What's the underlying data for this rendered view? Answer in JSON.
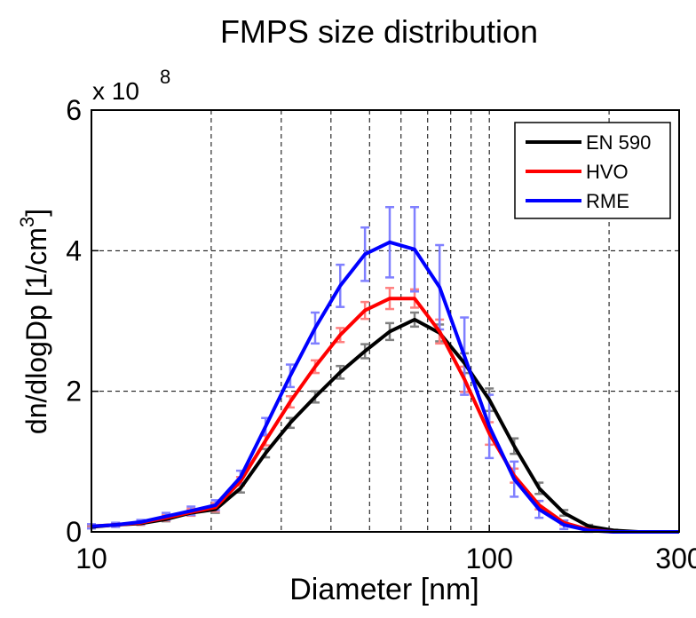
{
  "chart_data": {
    "type": "line",
    "title": "FMPS size distribution",
    "xlabel": "Diameter [nm]",
    "ylabel_main": "dn/dlogDp [1/cm",
    "ylabel_sup": "3",
    "ylabel_close": "]",
    "y_multiplier_base": "x 10",
    "y_multiplier_exp": "8",
    "x_scale": "log",
    "xlim": [
      10,
      300
    ],
    "ylim": [
      0,
      6
    ],
    "x_tick_labels": [
      {
        "value": 10,
        "label": "10"
      },
      {
        "value": 100,
        "label": "100"
      },
      {
        "value": 300,
        "label": "300"
      }
    ],
    "y_tick_labels": [
      {
        "value": 0,
        "label": "0"
      },
      {
        "value": 2,
        "label": "2"
      },
      {
        "value": 4,
        "label": "4"
      },
      {
        "value": 6,
        "label": "6"
      }
    ],
    "x_gridlines": [
      20,
      30,
      40,
      50,
      60,
      70,
      80,
      90,
      100,
      200
    ],
    "y_gridlines": [
      2,
      4
    ],
    "grid": true,
    "legend_position": "top-right",
    "x": [
      10,
      11.5,
      13.3,
      15.4,
      17.8,
      20.5,
      23.7,
      27.4,
      31.6,
      36.5,
      42.2,
      48.7,
      56.2,
      64.9,
      75.0,
      86.6,
      100,
      115.5,
      133.4,
      154,
      177.8,
      205.4,
      237.1,
      273.8,
      300
    ],
    "series": [
      {
        "name": "EN 590",
        "color": "#000000",
        "errcolor": "#808080",
        "values": [
          0.07,
          0.1,
          0.12,
          0.18,
          0.27,
          0.32,
          0.62,
          1.12,
          1.55,
          1.92,
          2.27,
          2.57,
          2.85,
          3.02,
          2.83,
          2.4,
          1.88,
          1.22,
          0.62,
          0.27,
          0.08,
          0.02,
          0.0,
          0.0,
          0.0
        ],
        "err": [
          0.02,
          0.02,
          0.02,
          0.03,
          0.04,
          0.05,
          0.06,
          0.06,
          0.07,
          0.08,
          0.09,
          0.1,
          0.12,
          0.1,
          0.12,
          0.14,
          0.16,
          0.11,
          0.08,
          0.04,
          0.02,
          0.01,
          0.0,
          0.0,
          0.0
        ]
      },
      {
        "name": "HVO",
        "color": "#ff0000",
        "errcolor": "#ff8080",
        "values": [
          0.08,
          0.1,
          0.13,
          0.2,
          0.28,
          0.35,
          0.72,
          1.3,
          1.85,
          2.35,
          2.8,
          3.15,
          3.32,
          3.32,
          2.85,
          2.17,
          1.4,
          0.8,
          0.38,
          0.13,
          0.03,
          0.0,
          0.0,
          0.0,
          0.0
        ],
        "err": [
          0.02,
          0.02,
          0.03,
          0.04,
          0.05,
          0.06,
          0.06,
          0.07,
          0.08,
          0.09,
          0.1,
          0.12,
          0.15,
          0.13,
          0.17,
          0.18,
          0.16,
          0.1,
          0.06,
          0.03,
          0.01,
          0.0,
          0.0,
          0.0,
          0.0
        ]
      },
      {
        "name": "RME",
        "color": "#0000ff",
        "errcolor": "#8080ff",
        "values": [
          0.08,
          0.1,
          0.14,
          0.22,
          0.3,
          0.38,
          0.78,
          1.5,
          2.22,
          2.9,
          3.5,
          3.95,
          4.12,
          4.02,
          3.48,
          2.5,
          1.5,
          0.75,
          0.32,
          0.1,
          0.02,
          0.0,
          0.0,
          0.0,
          0.0
        ],
        "err": [
          0.03,
          0.03,
          0.03,
          0.05,
          0.06,
          0.07,
          0.09,
          0.12,
          0.16,
          0.22,
          0.3,
          0.38,
          0.5,
          0.6,
          0.6,
          0.55,
          0.45,
          0.25,
          0.12,
          0.06,
          0.02,
          0.0,
          0.0,
          0.0,
          0.0
        ]
      }
    ]
  }
}
